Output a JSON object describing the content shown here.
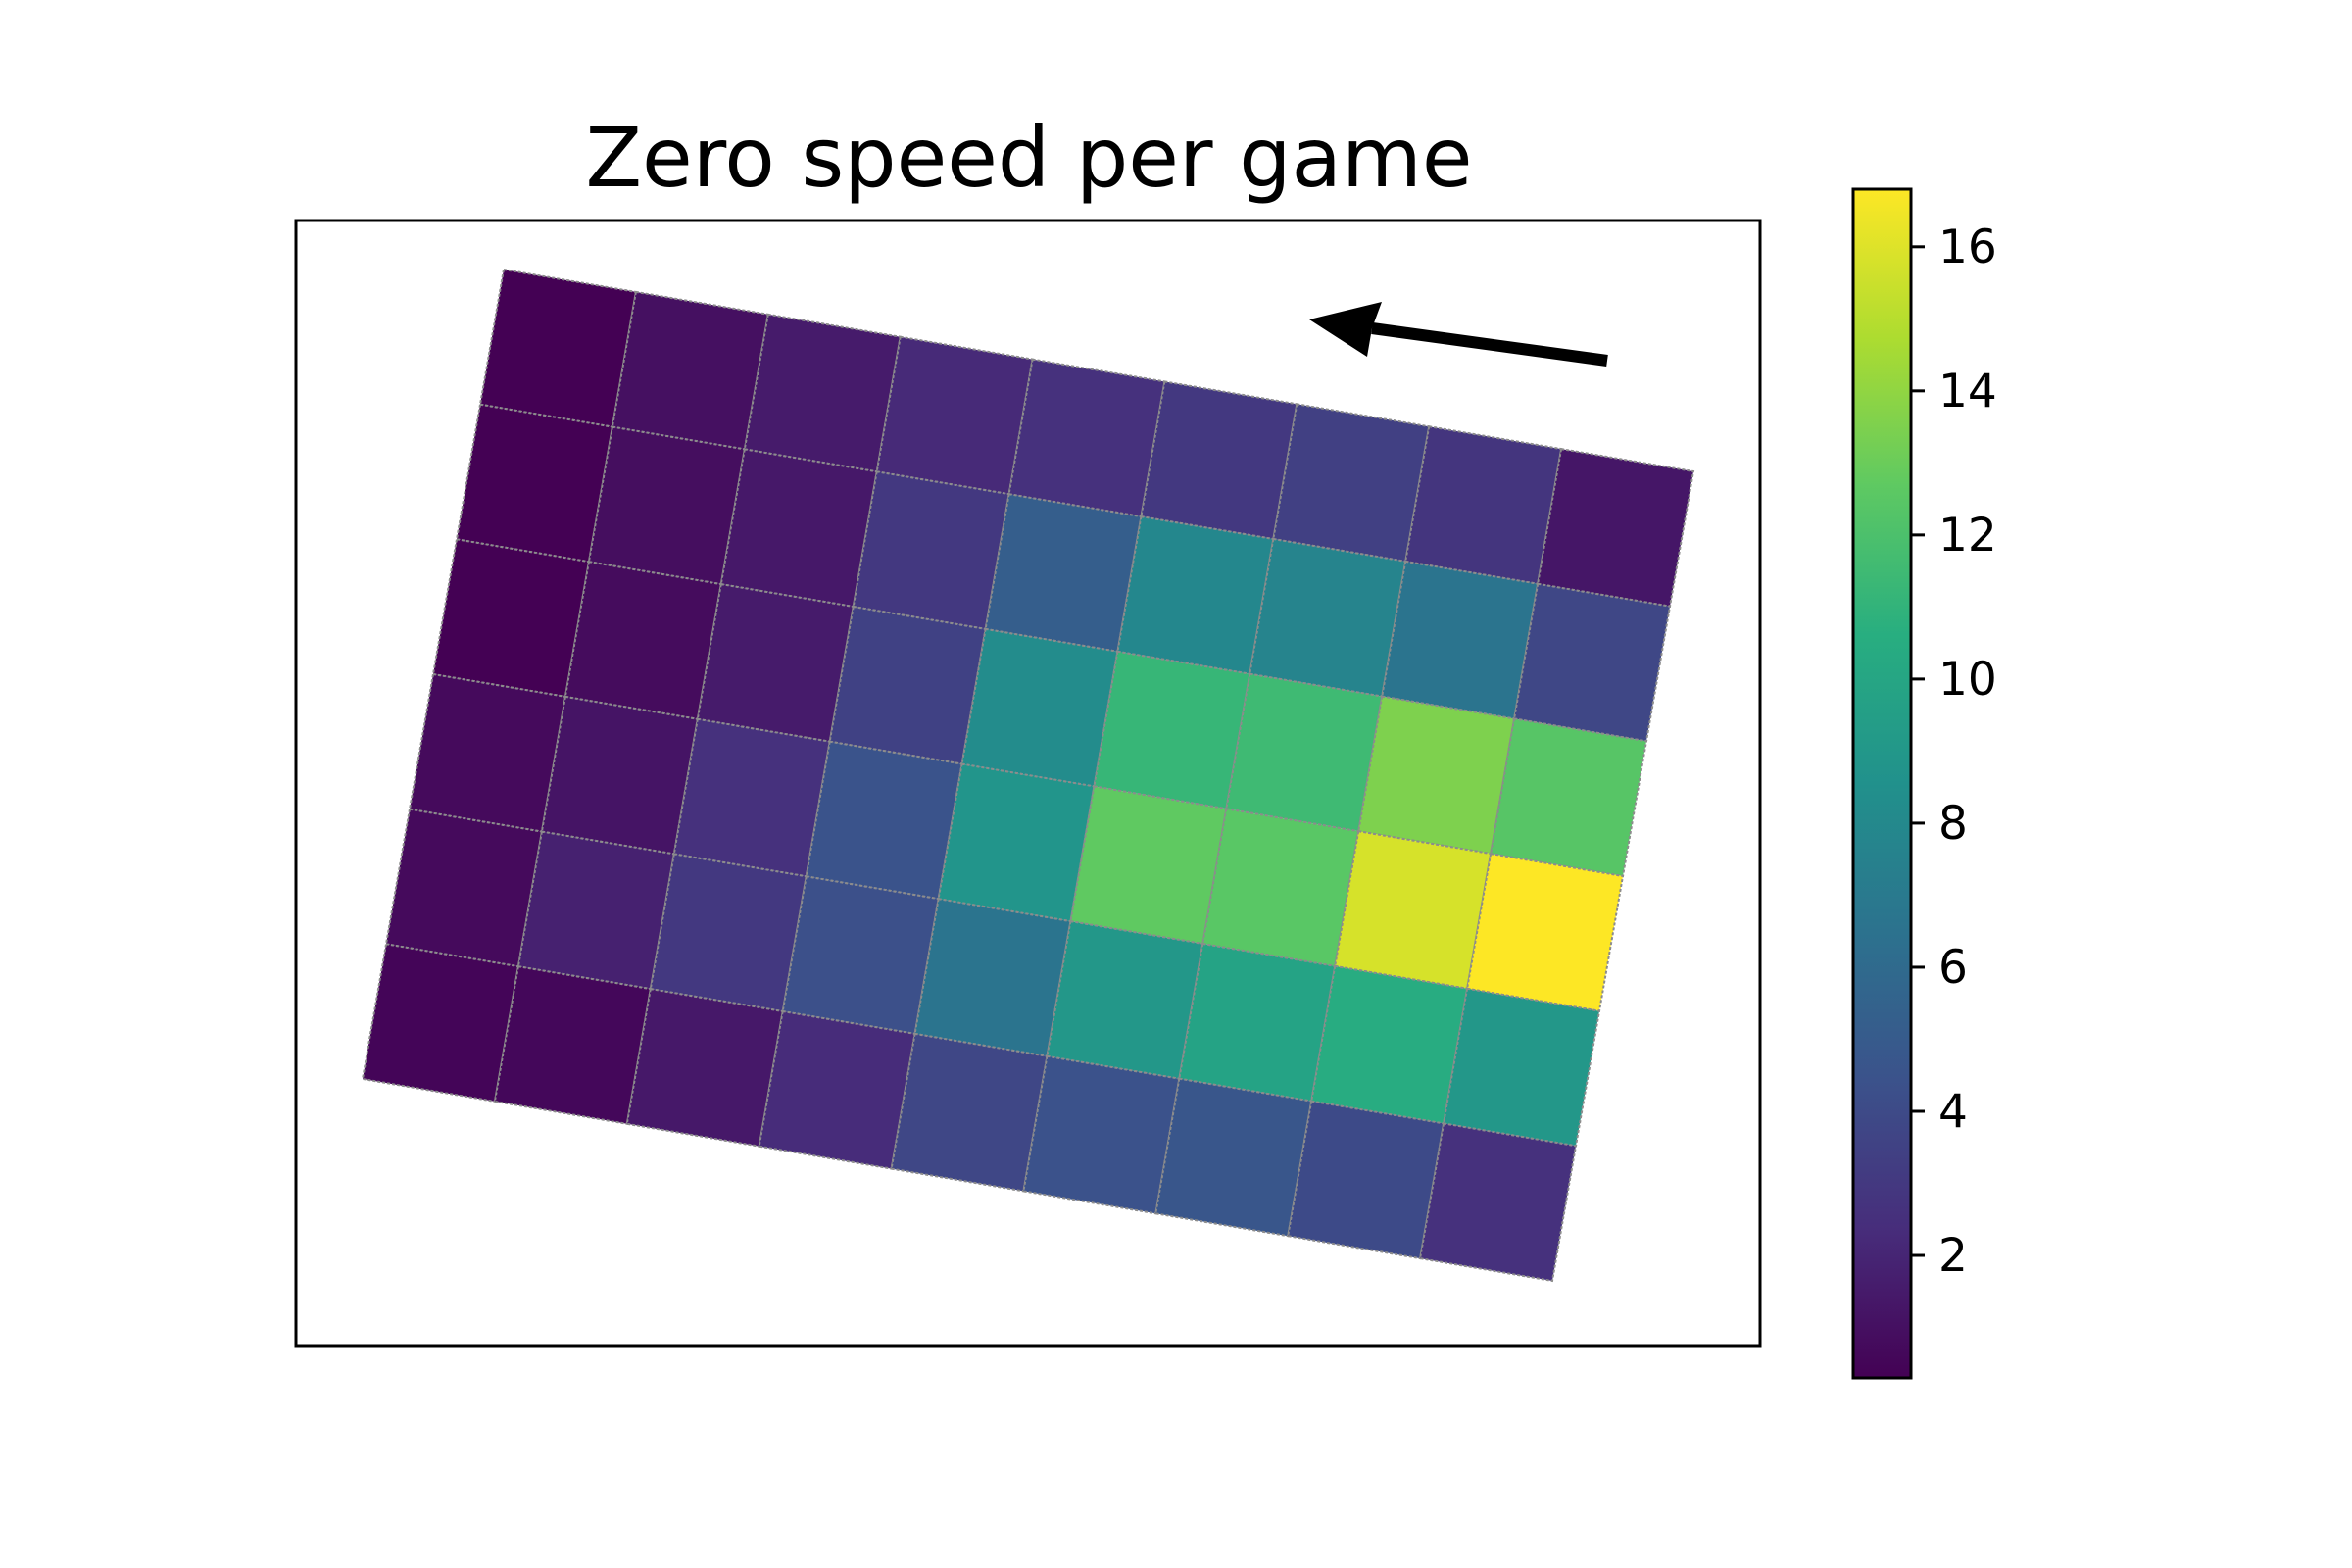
{
  "chart_data": {
    "type": "heatmap",
    "title": "Zero speed per game",
    "rows": 6,
    "cols": 9,
    "values": [
      [
        0.3,
        1.0,
        1.5,
        2.2,
        2.6,
        3.0,
        3.4,
        2.8,
        1.3
      ],
      [
        0.3,
        0.9,
        1.4,
        3.0,
        5.2,
        7.9,
        7.7,
        6.6,
        3.8
      ],
      [
        0.3,
        0.8,
        1.5,
        3.5,
        8.2,
        11.2,
        11.5,
        13.5,
        12.4
      ],
      [
        0.7,
        1.2,
        2.6,
        4.5,
        8.8,
        12.7,
        12.5,
        15.8,
        16.8
      ],
      [
        0.7,
        1.8,
        3.0,
        4.3,
        6.6,
        9.0,
        9.8,
        10.5,
        9.0
      ],
      [
        0.5,
        0.6,
        1.4,
        2.3,
        3.8,
        4.4,
        4.7,
        4.0,
        2.6
      ]
    ],
    "colorbar": {
      "min": 0.3,
      "max": 16.8,
      "ticks": [
        "2",
        "4",
        "6",
        "8",
        "10",
        "12",
        "14",
        "16"
      ],
      "colormap": "viridis"
    },
    "annotation": "direction-arrow",
    "xticks": [],
    "yticks": [],
    "grid": true,
    "grid_color": "#8c8c8c"
  }
}
